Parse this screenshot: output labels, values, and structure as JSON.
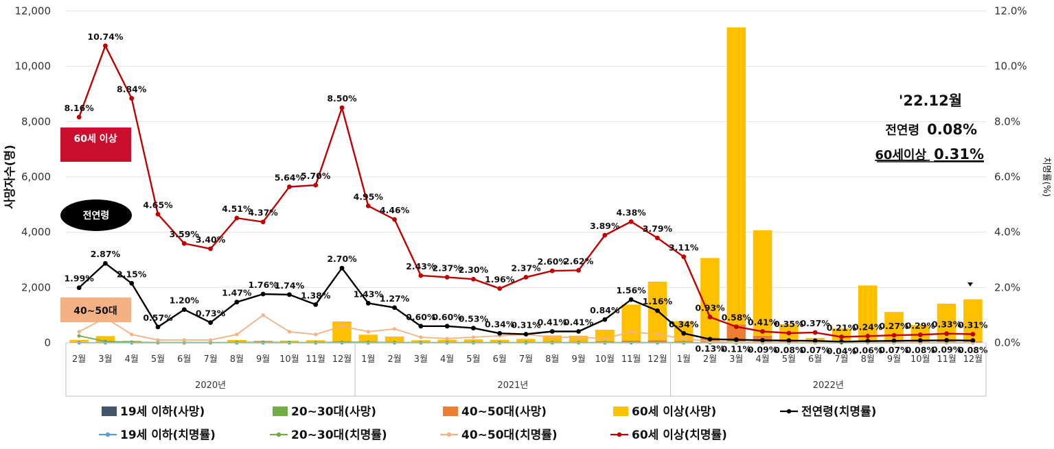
{
  "chart_data": {
    "type": "bar+line",
    "left_axis": {
      "title": "사망자수(명)",
      "min": 0,
      "max": 12000,
      "ticks": [
        "0",
        "2,000",
        "4,000",
        "6,000",
        "8,000",
        "10,000",
        "12,000"
      ]
    },
    "right_axis": {
      "title": "치명률(%)",
      "min": 0,
      "max": 12,
      "ticks": [
        "0.0%",
        "2.0%",
        "4.0%",
        "6.0%",
        "8.0%",
        "10.0%",
        "12.0%"
      ]
    },
    "years": [
      "2020년",
      "2021년",
      "2022년"
    ],
    "months": [
      "2월",
      "3월",
      "4월",
      "5월",
      "6월",
      "7월",
      "8월",
      "9월",
      "10월",
      "11월",
      "12월",
      "1월",
      "2월",
      "3월",
      "4월",
      "5월",
      "6월",
      "7월",
      "8월",
      "9월",
      "10월",
      "11월",
      "12월",
      "1월",
      "2월",
      "3월",
      "4월",
      "5월",
      "6월",
      "7월",
      "8월",
      "9월",
      "10월",
      "11월",
      "12월"
    ],
    "bar_series": [
      {
        "name": "19세 이하(사망)",
        "color": "#44546A",
        "values": [
          0,
          0,
          0,
          0,
          0,
          0,
          0,
          0,
          0,
          0,
          0,
          0,
          0,
          0,
          0,
          0,
          0,
          0,
          0,
          0,
          0,
          0,
          0,
          0,
          5,
          25,
          10,
          3,
          2,
          2,
          2,
          2,
          2,
          2,
          2
        ]
      },
      {
        "name": "20~30대(사망)",
        "color": "#70AD47",
        "values": [
          10,
          15,
          5,
          2,
          2,
          2,
          5,
          5,
          5,
          5,
          10,
          10,
          5,
          5,
          5,
          5,
          5,
          5,
          5,
          5,
          10,
          10,
          10,
          10,
          30,
          80,
          40,
          10,
          5,
          5,
          10,
          10,
          10,
          10,
          10
        ]
      },
      {
        "name": "40~50대(사망)",
        "color": "#ED7D31",
        "values": [
          20,
          25,
          10,
          5,
          5,
          5,
          15,
          10,
          10,
          15,
          40,
          30,
          20,
          15,
          15,
          15,
          15,
          15,
          30,
          30,
          40,
          70,
          80,
          50,
          150,
          550,
          200,
          40,
          15,
          30,
          60,
          40,
          30,
          40,
          40
        ]
      },
      {
        "name": "60세 이상(사망)",
        "color": "#FFC000",
        "values": [
          75,
          200,
          60,
          10,
          20,
          15,
          80,
          60,
          60,
          70,
          720,
          250,
          200,
          70,
          90,
          100,
          90,
          120,
          230,
          220,
          420,
          1300,
          2120,
          720,
          2880,
          10750,
          3820,
          620,
          150,
          480,
          2000,
          1060,
          600,
          1360,
          1520
        ]
      }
    ],
    "line_series": [
      {
        "name": "19세 이하(치명률)",
        "color": "#5B9BD5",
        "values": [
          0,
          0,
          0,
          0,
          0,
          0,
          0,
          0,
          0,
          0,
          0,
          0,
          0,
          0,
          0,
          0,
          0,
          0,
          0,
          0,
          0,
          0,
          0,
          0,
          0,
          0,
          0,
          0,
          0,
          0,
          0,
          0,
          0,
          0,
          0
        ]
      },
      {
        "name": "20~30대(치명률)",
        "color": "#70AD47",
        "values": [
          0.25,
          0.05,
          0.02,
          0.01,
          0.01,
          0.01,
          0.01,
          0.02,
          0.01,
          0.01,
          0.02,
          0.02,
          0.01,
          0.01,
          0.01,
          0.01,
          0.01,
          0.01,
          0.01,
          0.01,
          0.01,
          0.01,
          0.01,
          0.01,
          0.0,
          0.0,
          0.0,
          0.0,
          0.0,
          0.0,
          0.0,
          0.0,
          0.0,
          0.0,
          0.0
        ]
      },
      {
        "name": "40~50대(치명률)",
        "color": "#F4B183",
        "values": [
          0.4,
          0.9,
          0.3,
          0.1,
          0.1,
          0.1,
          0.3,
          1.0,
          0.4,
          0.3,
          0.6,
          0.4,
          0.5,
          0.2,
          0.15,
          0.2,
          0.25,
          0.3,
          0.2,
          0.2,
          0.15,
          0.4,
          0.3,
          0.15,
          0.05,
          0.03,
          0.02,
          0.01,
          0.01,
          0.01,
          0.01,
          0.01,
          0.01,
          0.01,
          0.01
        ]
      },
      {
        "name": "전연령(치명률)",
        "color": "#000000",
        "values": [
          1.99,
          2.87,
          2.15,
          0.57,
          1.2,
          0.73,
          1.47,
          1.76,
          1.74,
          1.38,
          2.7,
          1.43,
          1.27,
          0.6,
          0.6,
          0.53,
          0.34,
          0.31,
          0.41,
          0.41,
          0.84,
          1.56,
          1.16,
          0.34,
          0.13,
          0.11,
          0.09,
          0.08,
          0.07,
          0.04,
          0.06,
          0.07,
          0.08,
          0.09,
          0.08
        ],
        "labels": [
          "1.99%",
          "2.87%",
          "2.15%",
          "0.57%",
          "1.20%",
          "0.73%",
          "1.47%",
          "1.76%",
          "1.74%",
          "1.38%",
          "2.70%",
          "1.43%",
          "1.27%",
          "0.60%",
          "0.60%",
          "0.53%",
          "0.34%",
          "0.31%",
          "0.41%",
          "0.41%",
          "0.84%",
          "1.56%",
          "1.16%",
          "0.34%",
          "0.13%",
          "0.11%",
          "0.09%",
          "0.08%",
          "0.07%",
          "0.04%",
          "0.06%",
          "0.07%",
          "0.08%",
          "0.09%",
          "0.08%"
        ]
      },
      {
        "name": "60세 이상(치명률)",
        "color": "#C00000",
        "values": [
          8.16,
          10.74,
          8.84,
          4.65,
          3.59,
          3.4,
          4.51,
          4.37,
          5.64,
          5.7,
          8.5,
          4.95,
          4.46,
          2.43,
          2.37,
          2.3,
          1.96,
          2.37,
          2.6,
          2.62,
          3.89,
          4.38,
          3.79,
          3.11,
          0.93,
          0.58,
          0.41,
          0.35,
          0.37,
          0.21,
          0.24,
          0.27,
          0.29,
          0.33,
          0.31
        ],
        "labels": [
          "8.16%",
          "10.74%",
          "8.84%",
          "4.65%",
          "3.59%",
          "3.40%",
          "4.51%",
          "4.37%",
          "5.64%",
          "5.70%",
          "8.50%",
          "4.95%",
          "4.46%",
          "2.43%",
          "2.37%",
          "2.30%",
          "1.96%",
          "2.37%",
          "2.60%",
          "2.62%",
          "3.89%",
          "4.38%",
          "3.79%",
          "3.11%",
          "0.93%",
          "0.58%",
          "0.41%",
          "0.35%",
          "0.37%",
          "0.21%",
          "0.24%",
          "0.27%",
          "0.29%",
          "0.33%",
          "0.31%"
        ]
      }
    ],
    "annotations": {
      "badge_60": "60세 이상",
      "badge_all": "전연령",
      "badge_4050": "40~50대",
      "callout_title": "'22.12월",
      "callout_all_label": "전연령",
      "callout_all_value": "0.08%",
      "callout_60_label": "60세이상",
      "callout_60_value": "0.31%"
    },
    "legend": [
      "19세 이하(사망)",
      "20~30대(사망)",
      "40~50대(사망)",
      "60세 이상(사망)",
      "전연령(치명률)",
      "19세 이하(치명률)",
      "20~30대(치명률)",
      "40~50대(치명률)",
      "60세 이상(치명률)"
    ]
  }
}
